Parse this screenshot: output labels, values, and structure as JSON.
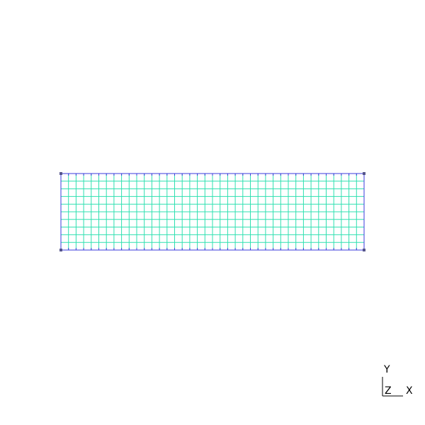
{
  "mesh": {
    "columns": 40,
    "rows": 10,
    "boundary_color": "#3b3bdc",
    "interior_color": "#2ee0b0",
    "corner_node_color": "#55558a"
  },
  "triad": {
    "y_label": "Y",
    "z_label": "Z",
    "x_label": "X"
  }
}
